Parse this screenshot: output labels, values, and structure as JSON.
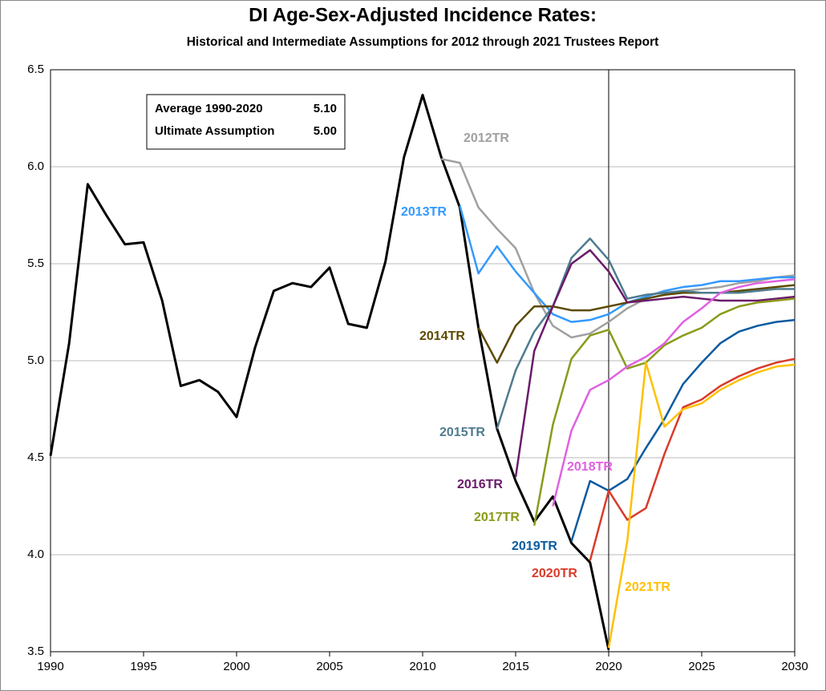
{
  "chart_data": {
    "type": "line",
    "title": "DI Age-Sex-Adjusted Incidence Rates:",
    "subtitle": "Historical and Intermediate Assumptions for 2012 through 2021 Trustees Report",
    "annotations": [
      "Average 1990-2020",
      "5.10",
      "Ultimate Assumption",
      "5.00"
    ],
    "vline": 2020,
    "x": [
      1990,
      1991,
      1992,
      1993,
      1994,
      1995,
      1996,
      1997,
      1998,
      1999,
      2000,
      2001,
      2002,
      2003,
      2004,
      2005,
      2006,
      2007,
      2008,
      2009,
      2010,
      2011,
      2012,
      2013,
      2014,
      2015,
      2016,
      2017,
      2018,
      2019,
      2020,
      2021,
      2022,
      2023,
      2024,
      2025,
      2026,
      2027,
      2028,
      2029,
      2030
    ],
    "xlim": [
      1990,
      2030
    ],
    "xticks": [
      1990,
      1995,
      2000,
      2005,
      2010,
      2015,
      2020,
      2025,
      2030
    ],
    "ylim": [
      3.5,
      6.5
    ],
    "yticks": [
      3.5,
      {
        "value": 4,
        "label": "4.0"
      },
      4.5,
      {
        "value": 5,
        "label": "5.0"
      },
      5.5,
      {
        "value": 6,
        "label": "6.0"
      },
      6.5
    ],
    "grid": true,
    "series": [
      {
        "color": "#000000",
        "values": [
          4.51,
          5.09,
          5.91,
          5.75,
          5.6,
          5.61,
          5.31,
          4.87,
          4.9,
          4.84,
          4.71,
          5.07,
          5.36,
          5.4,
          5.38,
          5.48,
          5.19,
          5.17,
          5.51,
          6.05,
          6.37,
          6.05,
          5.79,
          5.17,
          4.65,
          4.38,
          4.17,
          4.3,
          4.06,
          3.96,
          3.51,
          null,
          null,
          null,
          null,
          null,
          null,
          null,
          null,
          null,
          null
        ]
      },
      {
        "name": "2012TR",
        "color": "#a0a0a0",
        "values": [
          null,
          null,
          null,
          null,
          null,
          null,
          null,
          null,
          null,
          null,
          null,
          null,
          null,
          null,
          null,
          null,
          null,
          null,
          null,
          null,
          null,
          6.04,
          6.02,
          5.79,
          5.68,
          5.58,
          5.35,
          5.18,
          5.12,
          5.14,
          5.2,
          5.27,
          5.32,
          5.34,
          5.36,
          5.37,
          5.38,
          5.4,
          5.41,
          5.43,
          5.44
        ]
      },
      {
        "name": "2013TR",
        "color": "#3399ff",
        "values": [
          null,
          null,
          null,
          null,
          null,
          null,
          null,
          null,
          null,
          null,
          null,
          null,
          null,
          null,
          null,
          null,
          null,
          null,
          null,
          null,
          null,
          null,
          5.8,
          5.45,
          5.59,
          5.46,
          5.35,
          5.24,
          5.2,
          5.21,
          5.24,
          5.3,
          5.33,
          5.36,
          5.38,
          5.39,
          5.41,
          5.41,
          5.42,
          5.43,
          5.43
        ]
      },
      {
        "name": "2014TR",
        "color": "#5c4a00",
        "values": [
          null,
          null,
          null,
          null,
          null,
          null,
          null,
          null,
          null,
          null,
          null,
          null,
          null,
          null,
          null,
          null,
          null,
          null,
          null,
          null,
          null,
          null,
          null,
          5.17,
          4.99,
          5.18,
          5.28,
          5.28,
          5.26,
          5.26,
          5.28,
          5.3,
          5.32,
          5.34,
          5.35,
          5.35,
          5.35,
          5.36,
          5.37,
          5.38,
          5.39
        ]
      },
      {
        "name": "2015TR",
        "color": "#4f7b8f",
        "values": [
          null,
          null,
          null,
          null,
          null,
          null,
          null,
          null,
          null,
          null,
          null,
          null,
          null,
          null,
          null,
          null,
          null,
          null,
          null,
          null,
          null,
          null,
          null,
          null,
          4.65,
          4.95,
          5.15,
          5.28,
          5.53,
          5.63,
          5.52,
          5.32,
          5.34,
          5.35,
          5.36,
          5.35,
          5.35,
          5.35,
          5.36,
          5.37,
          5.37
        ]
      },
      {
        "name": "2016TR",
        "color": "#6a1b6a",
        "values": [
          null,
          null,
          null,
          null,
          null,
          null,
          null,
          null,
          null,
          null,
          null,
          null,
          null,
          null,
          null,
          null,
          null,
          null,
          null,
          null,
          null,
          null,
          null,
          null,
          null,
          4.4,
          5.05,
          5.28,
          5.5,
          5.57,
          5.46,
          5.3,
          5.31,
          5.32,
          5.33,
          5.32,
          5.31,
          5.31,
          5.31,
          5.32,
          5.33
        ]
      },
      {
        "name": "2017TR",
        "color": "#8a9a1a",
        "values": [
          null,
          null,
          null,
          null,
          null,
          null,
          null,
          null,
          null,
          null,
          null,
          null,
          null,
          null,
          null,
          null,
          null,
          null,
          null,
          null,
          null,
          null,
          null,
          null,
          null,
          null,
          4.15,
          4.67,
          5.01,
          5.13,
          5.16,
          4.96,
          4.99,
          5.08,
          5.13,
          5.17,
          5.24,
          5.28,
          5.3,
          5.31,
          5.32
        ]
      },
      {
        "name": "2018TR",
        "color": "#e060e0",
        "values": [
          null,
          null,
          null,
          null,
          null,
          null,
          null,
          null,
          null,
          null,
          null,
          null,
          null,
          null,
          null,
          null,
          null,
          null,
          null,
          null,
          null,
          null,
          null,
          null,
          null,
          null,
          null,
          4.25,
          4.64,
          4.85,
          4.9,
          4.97,
          5.02,
          5.09,
          5.2,
          5.27,
          5.35,
          5.38,
          5.4,
          5.41,
          5.42
        ]
      },
      {
        "name": "2019TR",
        "color": "#0a5aa0",
        "values": [
          null,
          null,
          null,
          null,
          null,
          null,
          null,
          null,
          null,
          null,
          null,
          null,
          null,
          null,
          null,
          null,
          null,
          null,
          null,
          null,
          null,
          null,
          null,
          null,
          null,
          null,
          null,
          null,
          4.07,
          4.38,
          4.33,
          4.39,
          4.55,
          4.7,
          4.88,
          4.99,
          5.09,
          5.15,
          5.18,
          5.2,
          5.21
        ]
      },
      {
        "name": "2020TR",
        "color": "#d93a2a",
        "values": [
          null,
          null,
          null,
          null,
          null,
          null,
          null,
          null,
          null,
          null,
          null,
          null,
          null,
          null,
          null,
          null,
          null,
          null,
          null,
          null,
          null,
          null,
          null,
          null,
          null,
          null,
          null,
          null,
          null,
          3.97,
          4.33,
          4.18,
          4.24,
          4.52,
          4.76,
          4.8,
          4.87,
          4.92,
          4.96,
          4.99,
          5.01
        ]
      },
      {
        "name": "2021TR",
        "color": "#ffc000",
        "values": [
          null,
          null,
          null,
          null,
          null,
          null,
          null,
          null,
          null,
          null,
          null,
          null,
          null,
          null,
          null,
          null,
          null,
          null,
          null,
          null,
          null,
          null,
          null,
          null,
          null,
          null,
          null,
          null,
          null,
          null,
          3.52,
          4.07,
          4.99,
          4.66,
          4.75,
          4.78,
          4.85,
          4.9,
          4.94,
          4.97,
          4.98
        ]
      }
    ]
  }
}
